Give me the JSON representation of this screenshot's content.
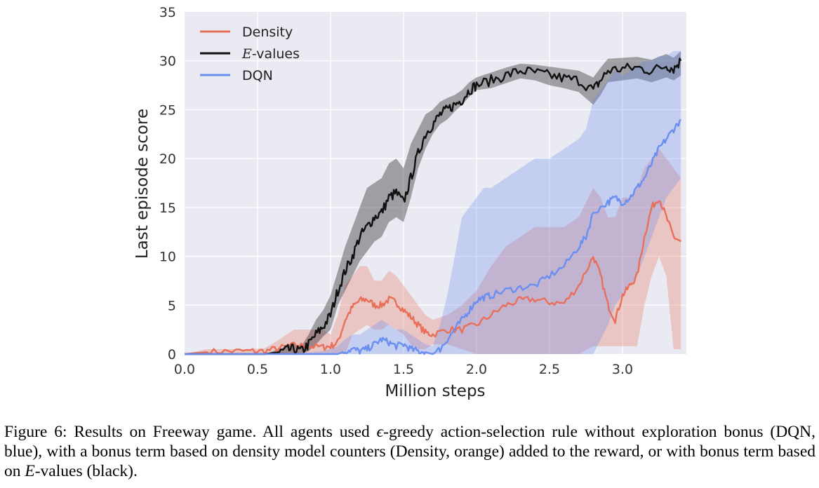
{
  "chart_data": {
    "type": "line",
    "title": "",
    "xlabel": "Million steps",
    "ylabel": "Last episode score",
    "xlim": [
      0.0,
      3.4
    ],
    "ylim": [
      0,
      35
    ],
    "xticks": [
      "0.0",
      "0.5",
      "1.0",
      "1.5",
      "2.0",
      "2.5",
      "3.0"
    ],
    "yticks": [
      "0",
      "5",
      "10",
      "15",
      "20",
      "25",
      "30",
      "35"
    ],
    "grid": true,
    "background": "#eaeaf2",
    "legend_position": "top-left",
    "series": [
      {
        "name": "Density",
        "color": "#e8705a",
        "x": [
          0.0,
          0.15,
          0.3,
          0.45,
          0.55,
          0.65,
          0.75,
          0.85,
          0.95,
          1.0,
          1.05,
          1.1,
          1.15,
          1.2,
          1.25,
          1.3,
          1.35,
          1.4,
          1.45,
          1.5,
          1.55,
          1.6,
          1.65,
          1.7,
          1.8,
          1.9,
          2.0,
          2.1,
          2.2,
          2.3,
          2.4,
          2.5,
          2.6,
          2.7,
          2.8,
          2.85,
          2.9,
          2.95,
          3.0,
          3.05,
          3.1,
          3.15,
          3.2,
          3.25,
          3.3,
          3.35,
          3.4
        ],
        "y": [
          0.0,
          0.2,
          0.3,
          0.3,
          0.3,
          0.6,
          0.9,
          0.8,
          0.7,
          0.8,
          1.2,
          3.5,
          4.8,
          5.5,
          5.6,
          5.0,
          5.0,
          5.6,
          5.3,
          4.5,
          3.8,
          3.0,
          2.2,
          2.0,
          2.5,
          2.5,
          3.0,
          4.0,
          5.0,
          5.5,
          5.6,
          5.3,
          5.2,
          7.0,
          10.0,
          8.0,
          5.0,
          3.5,
          6.0,
          7.0,
          8.0,
          12.0,
          15.0,
          16.0,
          14.0,
          12.0,
          11.5
        ],
        "lower": [
          0.0,
          0.0,
          0.0,
          0.0,
          0.0,
          0.0,
          0.0,
          0.0,
          0.0,
          0.0,
          0.0,
          0.0,
          2.0,
          2.5,
          3.0,
          2.5,
          2.5,
          3.0,
          2.5,
          2.0,
          1.0,
          0.5,
          0.5,
          1.0,
          1.0,
          0.5,
          0.0,
          0.0,
          0.0,
          0.0,
          0.0,
          0.0,
          0.0,
          0.0,
          0.8,
          0.8,
          0.8,
          0.8,
          0.8,
          0.8,
          0.8,
          5.0,
          8.0,
          10.0,
          8.0,
          0.5,
          0.5
        ],
        "upper": [
          0.0,
          0.5,
          0.5,
          0.5,
          0.6,
          1.5,
          2.5,
          2.5,
          2.5,
          2.0,
          4.0,
          7.0,
          8.0,
          9.0,
          9.0,
          7.5,
          7.5,
          8.5,
          8.0,
          7.0,
          6.0,
          5.0,
          4.0,
          3.5,
          4.0,
          5.0,
          6.5,
          9.0,
          11.0,
          12.0,
          13.0,
          13.0,
          13.0,
          14.0,
          17.0,
          16.0,
          14.0,
          14.0,
          16.0,
          16.0,
          17.0,
          19.0,
          20.0,
          21.0,
          20.0,
          19.0,
          18.0
        ]
      },
      {
        "name": "E-values",
        "color": "#111111",
        "x": [
          0.0,
          0.15,
          0.3,
          0.45,
          0.55,
          0.65,
          0.7,
          0.75,
          0.8,
          0.85,
          0.9,
          0.95,
          1.0,
          1.05,
          1.1,
          1.15,
          1.2,
          1.25,
          1.3,
          1.35,
          1.4,
          1.45,
          1.5,
          1.55,
          1.6,
          1.65,
          1.7,
          1.75,
          1.8,
          1.85,
          1.9,
          1.95,
          2.0,
          2.1,
          2.2,
          2.3,
          2.4,
          2.5,
          2.6,
          2.7,
          2.8,
          2.85,
          2.9,
          3.0,
          3.1,
          3.2,
          3.3,
          3.35,
          3.4
        ],
        "y": [
          0.0,
          0.0,
          0.0,
          0.0,
          0.0,
          0.2,
          0.4,
          0.5,
          0.3,
          1.0,
          2.0,
          2.8,
          4.0,
          6.5,
          8.5,
          10.0,
          12.0,
          13.0,
          14.0,
          14.5,
          16.0,
          16.5,
          15.5,
          18.0,
          20.5,
          22.5,
          23.5,
          24.5,
          25.0,
          25.5,
          26.0,
          27.0,
          27.5,
          28.0,
          28.5,
          29.0,
          28.8,
          28.5,
          28.2,
          28.0,
          27.0,
          28.0,
          29.0,
          29.2,
          29.3,
          29.0,
          29.5,
          29.2,
          30.0
        ],
        "lower": [
          0.0,
          0.0,
          0.0,
          0.0,
          0.0,
          0.0,
          0.0,
          0.0,
          0.0,
          0.3,
          1.0,
          1.8,
          2.5,
          5.0,
          6.5,
          8.0,
          9.5,
          10.5,
          11.5,
          12.0,
          13.5,
          14.0,
          13.5,
          16.0,
          19.0,
          21.0,
          22.5,
          23.5,
          24.0,
          24.8,
          25.5,
          26.3,
          27.0,
          27.2,
          27.7,
          28.2,
          28.0,
          27.5,
          27.2,
          26.8,
          25.5,
          26.5,
          27.8,
          28.0,
          28.2,
          27.8,
          28.3,
          28.0,
          28.5
        ],
        "upper": [
          0.0,
          0.0,
          0.0,
          0.0,
          0.0,
          0.5,
          0.8,
          1.0,
          0.8,
          2.0,
          3.5,
          4.5,
          6.0,
          8.5,
          11.0,
          13.0,
          15.0,
          17.0,
          17.5,
          18.0,
          19.5,
          20.0,
          19.0,
          21.5,
          23.0,
          24.5,
          25.0,
          25.8,
          26.2,
          26.5,
          27.0,
          27.8,
          28.3,
          28.8,
          29.3,
          29.7,
          29.6,
          29.4,
          29.2,
          29.0,
          28.3,
          29.3,
          30.2,
          30.3,
          30.4,
          30.1,
          30.7,
          30.3,
          31.0
        ]
      },
      {
        "name": "DQN",
        "color": "#6a8ff0",
        "x": [
          0.0,
          0.5,
          0.8,
          0.95,
          1.0,
          1.05,
          1.1,
          1.15,
          1.2,
          1.25,
          1.3,
          1.35,
          1.4,
          1.45,
          1.5,
          1.55,
          1.6,
          1.65,
          1.7,
          1.75,
          1.8,
          1.85,
          1.9,
          1.95,
          2.0,
          2.05,
          2.1,
          2.2,
          2.3,
          2.4,
          2.5,
          2.6,
          2.7,
          2.75,
          2.8,
          2.9,
          2.95,
          3.0,
          3.05,
          3.1,
          3.15,
          3.2,
          3.25,
          3.3,
          3.35,
          3.4
        ],
        "y": [
          0.0,
          0.0,
          0.0,
          0.0,
          0.0,
          0.0,
          0.3,
          0.5,
          0.3,
          0.5,
          1.0,
          1.5,
          1.2,
          0.8,
          1.0,
          0.5,
          0.3,
          0.2,
          0.0,
          0.5,
          1.5,
          2.5,
          3.5,
          4.5,
          5.5,
          5.8,
          6.0,
          6.5,
          6.8,
          7.0,
          8.0,
          9.0,
          11.0,
          12.0,
          14.5,
          15.5,
          16.0,
          15.5,
          16.0,
          17.0,
          18.0,
          19.5,
          21.0,
          22.0,
          23.0,
          24.0
        ],
        "lower": [
          0.0,
          0.0,
          0.0,
          0.0,
          0.0,
          0.0,
          0.0,
          0.0,
          0.0,
          0.0,
          0.0,
          0.0,
          0.0,
          0.0,
          0.0,
          0.0,
          0.0,
          0.0,
          0.0,
          0.0,
          0.0,
          0.0,
          0.0,
          0.0,
          0.0,
          0.0,
          0.0,
          0.0,
          0.0,
          0.0,
          0.0,
          0.0,
          0.0,
          0.0,
          0.0,
          3.0,
          5.0,
          6.0,
          7.0,
          8.0,
          10.0,
          12.0,
          14.0,
          16.0,
          17.0,
          18.0
        ],
        "upper": [
          0.0,
          0.0,
          0.1,
          0.3,
          0.5,
          0.8,
          1.5,
          2.0,
          2.0,
          2.5,
          3.0,
          3.5,
          3.0,
          2.5,
          2.5,
          2.0,
          1.5,
          1.0,
          0.8,
          3.0,
          6.0,
          10.0,
          14.0,
          15.0,
          16.0,
          17.0,
          17.0,
          18.0,
          19.0,
          20.0,
          20.0,
          21.0,
          22.0,
          23.0,
          26.0,
          28.0,
          29.0,
          28.5,
          29.0,
          29.5,
          30.0,
          30.0,
          30.5,
          30.5,
          31.0,
          31.0
        ]
      }
    ]
  },
  "legend": {
    "density_label": "Density",
    "evalues_label_italic": "E",
    "evalues_label_rest": "-values",
    "dqn_label": "DQN"
  },
  "caption": {
    "part1": "Figure 6: Results on Freeway game. All agents used ",
    "epsilon": "ϵ",
    "part2": "-greedy action-selection rule without exploration bonus (DQN, blue), with a bonus term based on density model counters (Density, orange) added to the reward, or with bonus term based on ",
    "e": "E",
    "part3": "-values (black)."
  }
}
